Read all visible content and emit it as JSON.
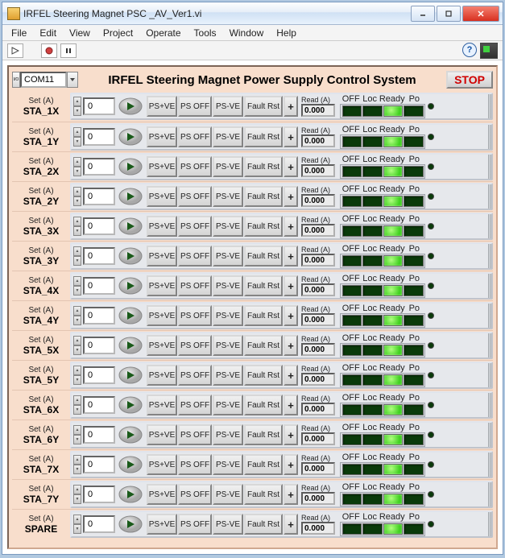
{
  "window": {
    "title": "IRFEL Steering Magnet PSC _AV_Ver1.vi"
  },
  "menu": {
    "file": "File",
    "edit": "Edit",
    "view": "View",
    "project": "Project",
    "operate": "Operate",
    "tools": "Tools",
    "window": "Window",
    "help": "Help"
  },
  "header": {
    "com": "COM11",
    "title": "IRFEL Steering Magnet Power Supply Control System",
    "stop": "STOP"
  },
  "btns": {
    "psve": "PS+VE",
    "psoff": "PS OFF",
    "psvn": "PS-VE",
    "frst": "Fault Rst",
    "plus": "+"
  },
  "labels": {
    "setA": "Set (A)",
    "readA": "Read (A)",
    "off": "OFF",
    "loc": "Loc",
    "ready": "Ready",
    "po": "Po"
  },
  "rows": [
    {
      "name": "STA_1X",
      "set": "0",
      "read": "0.000",
      "leds": [
        0,
        0,
        1,
        0
      ]
    },
    {
      "name": "STA_1Y",
      "set": "0",
      "read": "0.000",
      "leds": [
        0,
        0,
        1,
        0
      ]
    },
    {
      "name": "STA_2X",
      "set": "0",
      "read": "0.000",
      "leds": [
        0,
        0,
        1,
        0
      ]
    },
    {
      "name": "STA_2Y",
      "set": "0",
      "read": "0.000",
      "leds": [
        0,
        0,
        1,
        0
      ]
    },
    {
      "name": "STA_3X",
      "set": "0",
      "read": "0.000",
      "leds": [
        0,
        0,
        1,
        0
      ]
    },
    {
      "name": "STA_3Y",
      "set": "0",
      "read": "0.000",
      "leds": [
        0,
        0,
        1,
        0
      ]
    },
    {
      "name": "STA_4X",
      "set": "0",
      "read": "0.000",
      "leds": [
        0,
        0,
        1,
        0
      ]
    },
    {
      "name": "STA_4Y",
      "set": "0",
      "read": "0.000",
      "leds": [
        0,
        0,
        1,
        0
      ]
    },
    {
      "name": "STA_5X",
      "set": "0",
      "read": "0.000",
      "leds": [
        0,
        0,
        1,
        0
      ]
    },
    {
      "name": "STA_5Y",
      "set": "0",
      "read": "0.000",
      "leds": [
        0,
        0,
        1,
        0
      ]
    },
    {
      "name": "STA_6X",
      "set": "0",
      "read": "0.000",
      "leds": [
        0,
        0,
        1,
        0
      ]
    },
    {
      "name": "STA_6Y",
      "set": "0",
      "read": "0.000",
      "leds": [
        0,
        0,
        1,
        0
      ]
    },
    {
      "name": "STA_7X",
      "set": "0",
      "read": "0.000",
      "leds": [
        0,
        0,
        1,
        0
      ]
    },
    {
      "name": "STA_7Y",
      "set": "0",
      "read": "0.000",
      "leds": [
        0,
        0,
        1,
        0
      ]
    },
    {
      "name": "SPARE",
      "set": "0",
      "read": "0.000",
      "leds": [
        0,
        0,
        1,
        0
      ]
    }
  ]
}
